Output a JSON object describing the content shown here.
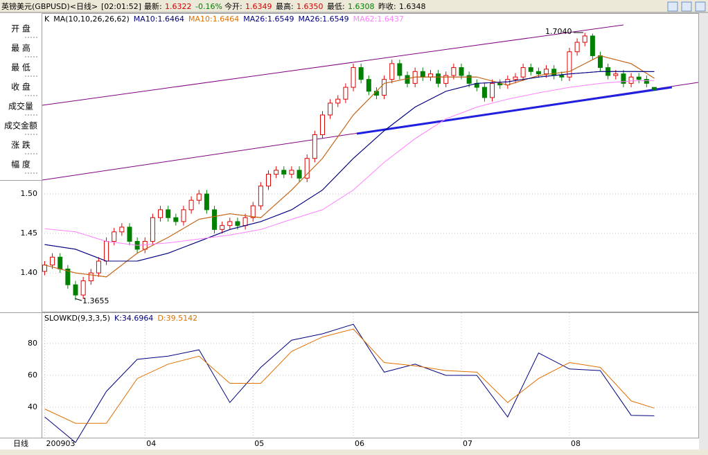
{
  "header": {
    "title": "英镑美元(GBPUSD)<日线>",
    "time": "[02:01:52]",
    "last_label": "最新:",
    "last": "1.6322",
    "change": "-0.16%",
    "open_label": "今开:",
    "open": "1.6349",
    "high_label": "最高:",
    "high": "1.6350",
    "low_label": "最低:",
    "low": "1.6308",
    "prev_label": "昨收:",
    "prev": "1.6348"
  },
  "side_labels": [
    "开 盘",
    "最 高",
    "最 低",
    "收 盘",
    "成交量",
    "成交金额",
    "涨 跌",
    "幅 度"
  ],
  "period_label": "日线",
  "chart_data": [
    {
      "type": "candlestick",
      "label": "K",
      "indicator": "MA(10,10,26,26,62)",
      "up_color": "#e00000",
      "down_color": "#008000",
      "xlim": [
        -0.4,
        84.7
      ],
      "ylim": [
        1.351,
        1.728
      ],
      "yticks": [
        {
          "value": 1.4,
          "label": "1.40"
        },
        {
          "value": 1.45,
          "label": "1.45"
        },
        {
          "value": 1.5,
          "label": "1.50"
        }
      ],
      "grid": true,
      "open": [
        1.402,
        1.41,
        1.42,
        1.405,
        1.385,
        1.372,
        1.39,
        1.4,
        1.415,
        1.44,
        1.452,
        1.458,
        1.44,
        1.43,
        1.44,
        1.47,
        1.48,
        1.47,
        1.465,
        1.48,
        1.492,
        1.5,
        1.48,
        1.455,
        1.46,
        1.465,
        1.46,
        1.47,
        1.485,
        1.51,
        1.525,
        1.53,
        1.525,
        1.53,
        1.52,
        1.545,
        1.575,
        1.6,
        1.615,
        1.62,
        1.635,
        1.66,
        1.645,
        1.63,
        1.625,
        1.645,
        1.665,
        1.65,
        1.64,
        1.655,
        1.648,
        1.652,
        1.64,
        1.65,
        1.66,
        1.65,
        1.64,
        1.635,
        1.622,
        1.64,
        1.638,
        1.645,
        1.648,
        1.66,
        1.655,
        1.652,
        1.658,
        1.65,
        1.648,
        1.68,
        1.692,
        1.7,
        1.675,
        1.66,
        1.65,
        1.652,
        1.64,
        1.648,
        1.645,
        1.6349
      ],
      "high": [
        1.415,
        1.425,
        1.425,
        1.41,
        1.39,
        1.395,
        1.405,
        1.42,
        1.445,
        1.457,
        1.463,
        1.463,
        1.445,
        1.445,
        1.475,
        1.485,
        1.485,
        1.475,
        1.485,
        1.497,
        1.505,
        1.505,
        1.485,
        1.465,
        1.47,
        1.47,
        1.475,
        1.49,
        1.515,
        1.53,
        1.535,
        1.535,
        1.535,
        1.535,
        1.55,
        1.58,
        1.605,
        1.62,
        1.625,
        1.64,
        1.665,
        1.665,
        1.65,
        1.635,
        1.65,
        1.67,
        1.67,
        1.655,
        1.66,
        1.66,
        1.657,
        1.657,
        1.655,
        1.665,
        1.665,
        1.655,
        1.645,
        1.64,
        1.645,
        1.645,
        1.65,
        1.653,
        1.665,
        1.665,
        1.66,
        1.663,
        1.663,
        1.655,
        1.685,
        1.697,
        1.704,
        1.703,
        1.68,
        1.665,
        1.657,
        1.657,
        1.653,
        1.653,
        1.65,
        1.635
      ],
      "low": [
        1.397,
        1.405,
        1.4,
        1.38,
        1.3655,
        1.367,
        1.385,
        1.395,
        1.41,
        1.435,
        1.447,
        1.435,
        1.425,
        1.425,
        1.435,
        1.465,
        1.465,
        1.46,
        1.46,
        1.475,
        1.487,
        1.475,
        1.45,
        1.45,
        1.455,
        1.455,
        1.455,
        1.465,
        1.48,
        1.505,
        1.52,
        1.52,
        1.52,
        1.515,
        1.515,
        1.54,
        1.57,
        1.595,
        1.61,
        1.615,
        1.63,
        1.64,
        1.625,
        1.62,
        1.62,
        1.64,
        1.645,
        1.635,
        1.635,
        1.643,
        1.643,
        1.635,
        1.635,
        1.645,
        1.645,
        1.635,
        1.63,
        1.617,
        1.617,
        1.633,
        1.633,
        1.64,
        1.643,
        1.65,
        1.647,
        1.647,
        1.645,
        1.643,
        1.643,
        1.675,
        1.687,
        1.67,
        1.655,
        1.645,
        1.645,
        1.635,
        1.635,
        1.64,
        1.635,
        1.6308
      ],
      "close": [
        1.41,
        1.42,
        1.405,
        1.385,
        1.372,
        1.39,
        1.4,
        1.415,
        1.44,
        1.452,
        1.458,
        1.44,
        1.43,
        1.44,
        1.47,
        1.48,
        1.47,
        1.465,
        1.48,
        1.492,
        1.5,
        1.48,
        1.455,
        1.46,
        1.465,
        1.46,
        1.47,
        1.485,
        1.51,
        1.525,
        1.53,
        1.525,
        1.53,
        1.52,
        1.545,
        1.575,
        1.6,
        1.615,
        1.62,
        1.635,
        1.66,
        1.645,
        1.63,
        1.625,
        1.645,
        1.665,
        1.65,
        1.64,
        1.655,
        1.648,
        1.652,
        1.64,
        1.65,
        1.66,
        1.65,
        1.64,
        1.635,
        1.622,
        1.64,
        1.638,
        1.645,
        1.648,
        1.66,
        1.655,
        1.652,
        1.658,
        1.65,
        1.648,
        1.68,
        1.692,
        1.7,
        1.675,
        1.66,
        1.65,
        1.652,
        1.64,
        1.648,
        1.645,
        1.64,
        1.6322
      ],
      "series": [
        {
          "name": "MA10:1.6464",
          "color": "#000080",
          "x": [
            0,
            4,
            8,
            12,
            16,
            20,
            24,
            28,
            32,
            36,
            40,
            44,
            48,
            52,
            56,
            60,
            64,
            68,
            72,
            76,
            79
          ],
          "values": [
            1.41,
            1.4,
            1.395,
            1.425,
            1.445,
            1.468,
            1.475,
            1.47,
            1.505,
            1.545,
            1.6,
            1.64,
            1.648,
            1.648,
            1.648,
            1.638,
            1.65,
            1.655,
            1.675,
            1.665,
            1.6464
          ]
        },
        {
          "name": "MA10:1.6464",
          "color": "#e07000",
          "x": [
            0,
            4,
            8,
            12,
            16,
            20,
            24,
            28,
            32,
            36,
            40,
            44,
            48,
            52,
            56,
            60,
            64,
            68,
            72,
            76,
            79
          ],
          "values": [
            1.41,
            1.4,
            1.395,
            1.425,
            1.445,
            1.468,
            1.475,
            1.47,
            1.505,
            1.545,
            1.6,
            1.64,
            1.648,
            1.648,
            1.648,
            1.638,
            1.65,
            1.655,
            1.675,
            1.665,
            1.6464
          ]
        },
        {
          "name": "MA26:1.6549",
          "color": "#000080",
          "x": [
            0,
            4,
            8,
            12,
            16,
            20,
            24,
            28,
            32,
            36,
            40,
            44,
            48,
            52,
            56,
            60,
            64,
            68,
            72,
            76,
            79
          ],
          "values": [
            1.436,
            1.43,
            1.415,
            1.415,
            1.425,
            1.44,
            1.455,
            1.465,
            1.48,
            1.505,
            1.545,
            1.58,
            1.61,
            1.63,
            1.64,
            1.642,
            1.648,
            1.652,
            1.655,
            1.655,
            1.6549
          ]
        },
        {
          "name": "MA26:1.6549",
          "color": "#000080",
          "x": [
            0,
            4,
            8,
            12,
            16,
            20,
            24,
            28,
            32,
            36,
            40,
            44,
            48,
            52,
            56,
            60,
            64,
            68,
            72,
            76,
            79
          ],
          "values": [
            1.436,
            1.43,
            1.415,
            1.415,
            1.425,
            1.44,
            1.455,
            1.465,
            1.48,
            1.505,
            1.545,
            1.58,
            1.61,
            1.63,
            1.64,
            1.642,
            1.648,
            1.652,
            1.655,
            1.655,
            1.6549
          ]
        },
        {
          "name": "MA62:1.6437",
          "color": "#ff80ff",
          "x": [
            0,
            4,
            8,
            12,
            16,
            20,
            24,
            28,
            32,
            36,
            40,
            44,
            48,
            52,
            56,
            60,
            64,
            68,
            72,
            76,
            79
          ],
          "values": [
            1.456,
            1.452,
            1.44,
            1.435,
            1.438,
            1.443,
            1.448,
            1.455,
            1.468,
            1.48,
            1.505,
            1.54,
            1.57,
            1.595,
            1.61,
            1.62,
            1.628,
            1.635,
            1.64,
            1.643,
            1.6437
          ]
        }
      ],
      "annotations": [
        "1.7040",
        "1.3655"
      ]
    },
    {
      "type": "line",
      "title": "SLOWKD(9,3,3,5)",
      "xlim": [
        -0.4,
        84.7
      ],
      "ylim": [
        21,
        99
      ],
      "yticks": [
        40,
        60,
        80
      ],
      "xticks": [
        {
          "value": 0,
          "label": "200903"
        },
        {
          "value": 13,
          "label": "04"
        },
        {
          "value": 27,
          "label": "05"
        },
        {
          "value": 40,
          "label": "06"
        },
        {
          "value": 54,
          "label": "07"
        },
        {
          "value": 68,
          "label": "08"
        }
      ],
      "grid": true,
      "series": [
        {
          "name": "K:34.6964",
          "color": "#000080",
          "x": [
            0,
            4,
            8,
            12,
            16,
            20,
            24,
            28,
            32,
            36,
            40,
            44,
            48,
            52,
            56,
            60,
            64,
            68,
            72,
            76,
            79
          ],
          "values": [
            34,
            18,
            50,
            70,
            72,
            76,
            43,
            65,
            82,
            86,
            92,
            62,
            67,
            60,
            60,
            34,
            74,
            64,
            63,
            35,
            34.6964
          ]
        },
        {
          "name": "D:39.5142",
          "color": "#e07000",
          "x": [
            0,
            4,
            8,
            12,
            16,
            20,
            24,
            28,
            32,
            36,
            40,
            44,
            48,
            52,
            56,
            60,
            64,
            68,
            72,
            76,
            79
          ],
          "values": [
            39,
            30,
            30,
            58,
            67,
            72,
            55,
            55,
            75,
            84,
            89,
            68,
            66,
            63,
            62,
            43,
            58,
            68,
            65,
            44,
            39.5142
          ]
        }
      ]
    }
  ]
}
